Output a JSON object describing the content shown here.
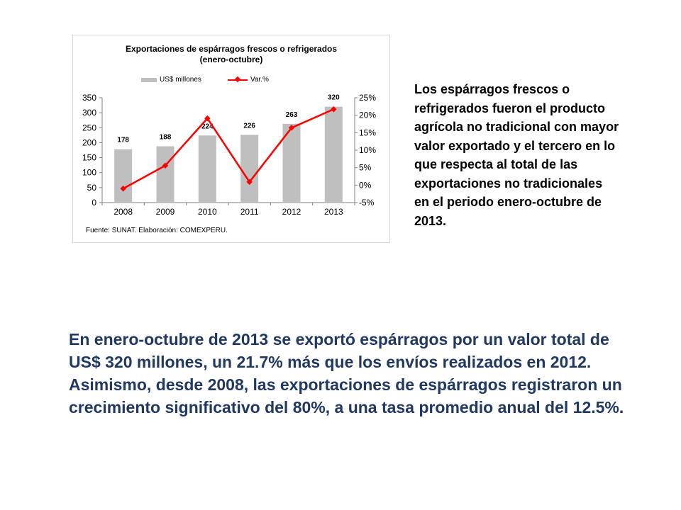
{
  "chart_data": {
    "type": "bar",
    "title": "Exportaciones de espárragos frescos o refrigerados",
    "subtitle": "(enero-octubre)",
    "categories": [
      "2008",
      "2009",
      "2010",
      "2011",
      "2012",
      "2013"
    ],
    "series": [
      {
        "name": "US$ millones",
        "type": "bar",
        "axis": "left",
        "values": [
          178,
          188,
          224,
          226,
          263,
          320
        ],
        "labels": [
          "178",
          "188",
          "224",
          "226",
          "263",
          "320"
        ],
        "color": "#bfbfbf"
      },
      {
        "name": "Var.%",
        "type": "line",
        "axis": "right",
        "values": [
          -1,
          5.6,
          19.1,
          0.9,
          16.4,
          21.7
        ],
        "color": "#ff0000"
      }
    ],
    "y_left": {
      "min": 0,
      "max": 350,
      "ticks": [
        "0",
        "50",
        "100",
        "150",
        "200",
        "250",
        "300",
        "350"
      ]
    },
    "y_right": {
      "min": -5,
      "max": 25,
      "ticks": [
        "-5%",
        "0%",
        "5%",
        "10%",
        "15%",
        "20%",
        "25%"
      ]
    },
    "legend_position": "top",
    "grid": false,
    "source": "Fuente: SUNAT. Elaboración: COMEXPERU."
  },
  "side_text": "Los espárragos frescos o refrigerados fueron el producto agrícola no tradicional con mayor valor exportado y el tercero en lo que respecta al total de las exportaciones no tradicionales en el periodo enero-octubre de 2013.",
  "main_text": "En enero-octubre de 2013 se exportó espárragos por un valor total de US$ 320 millones, un 21.7% más que los envíos realizados en 2012. Asimismo, desde 2008, las exportaciones de espárragos registraron un crecimiento significativo del 80%, a una tasa promedio anual del 12.5%."
}
